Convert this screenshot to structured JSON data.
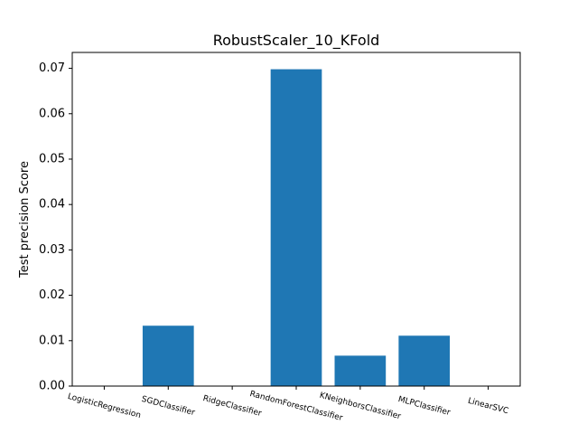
{
  "chart_data": {
    "type": "bar",
    "title": "RobustScaler_10_KFold",
    "xlabel": "",
    "ylabel": "Test precision Score",
    "categories": [
      "LogisticRegression",
      "SGDClassifier",
      "RidgeClassifier",
      "RandomForestClassifier",
      "KNeighborsClassifier",
      "MLPClassifier",
      "LinearSVC"
    ],
    "values": [
      0.0,
      0.0133,
      0.0,
      0.0698,
      0.0067,
      0.0111,
      0.0
    ],
    "ylim": [
      0,
      0.0735
    ],
    "yticks": [
      0.0,
      0.01,
      0.02,
      0.03,
      0.04,
      0.05,
      0.06,
      0.07
    ],
    "ytick_labels": [
      "0.00",
      "0.01",
      "0.02",
      "0.03",
      "0.04",
      "0.05",
      "0.06",
      "0.07"
    ],
    "x_tick_rotation": -15,
    "bar_color": "#1f77b4",
    "grid": false,
    "legend": false
  }
}
